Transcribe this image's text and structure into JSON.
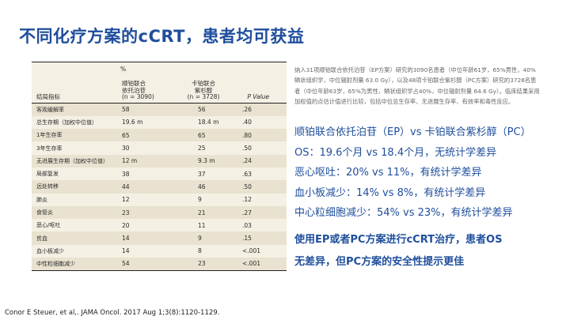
{
  "slide": {
    "title": "不同化疗方案的cCRT，患者均可获益"
  },
  "table": {
    "pct_label": "%",
    "headers": {
      "col1": "结局指标",
      "col2_line1": "顺铂联合",
      "col2_line2": "依托泊苷",
      "col2_n": "(n = 3090)",
      "col3_line1": "卡铂联合",
      "col3_line2": "紫杉醇",
      "col3_n": "(n = 3728)",
      "col4": "P Value"
    },
    "rows": [
      {
        "label": "客观缓解率",
        "ep": "58",
        "pc": "56",
        "p": ".26"
      },
      {
        "label": "总生存期（加权中位值）",
        "ep": "19.6 m",
        "pc": "18.4 m",
        "p": ".40"
      },
      {
        "label": "1年生存率",
        "ep": "65",
        "pc": "65",
        "p": ".80"
      },
      {
        "label": "3年生存率",
        "ep": "30",
        "pc": "25",
        "p": ".50"
      },
      {
        "label": "无进展生存期（加权中位值）",
        "ep": "12 m",
        "pc": "9.3 m",
        "p": ".24"
      },
      {
        "label": "局部复发",
        "ep": "38",
        "pc": "37",
        "p": ".63"
      },
      {
        "label": "远处转移",
        "ep": "44",
        "pc": "46",
        "p": ".50"
      },
      {
        "label": "肺炎",
        "ep": "12",
        "pc": "9",
        "p": ".12"
      },
      {
        "label": "食管炎",
        "ep": "23",
        "pc": "21",
        "p": ".27"
      },
      {
        "label": "恶心/呕吐",
        "ep": "20",
        "pc": "11",
        "p": ".03"
      },
      {
        "label": "贫血",
        "ep": "14",
        "pc": "9",
        "p": ".15"
      },
      {
        "label": "血小板减少",
        "ep": "14",
        "pc": "8",
        "p": "<.001"
      },
      {
        "label": "中性粒细胞减少",
        "ep": "54",
        "pc": "23",
        "p": "<.001"
      }
    ]
  },
  "description": "纳入31项顺铂联合依托泊苷（EP方案）研究的3090名患者（中位年龄61岁，65%男性，40%鳞状组织学，中位辐射剂量 63.0 Gy），以及48项卡铂联合紫杉醇（PC方案）研究的3728名患者（中位年龄63岁，65%为男性，鳞状组织学占40%，中位辐射剂量 64.6 Gy）。临床结果采用加权值的点估计值进行比较，包括中位总生存率、无进展生存率、有效率和毒性反应。",
  "bullets": [
    "顺铂联合依托泊苷（EP）vs 卡铂联合紫杉醇（PC）",
    "OS：19.6个月 vs 18.4个月，无统计学差异",
    "恶心呕吐：20% vs 11%，有统计学差异",
    "血小板减少：14% vs 8%，有统计学差异",
    "中心粒细胞减少：54% vs 23%，有统计学差异"
  ],
  "conclusion": {
    "line1": "使用EP或者PC方案进行cCRT治疗，患者OS",
    "line2": "无差异，但PC方案的安全性提示更佳"
  },
  "citation": "Conor E Steuer, et al,. JAMA Oncol. 2017 Aug 1;3(8):1120-1129."
}
